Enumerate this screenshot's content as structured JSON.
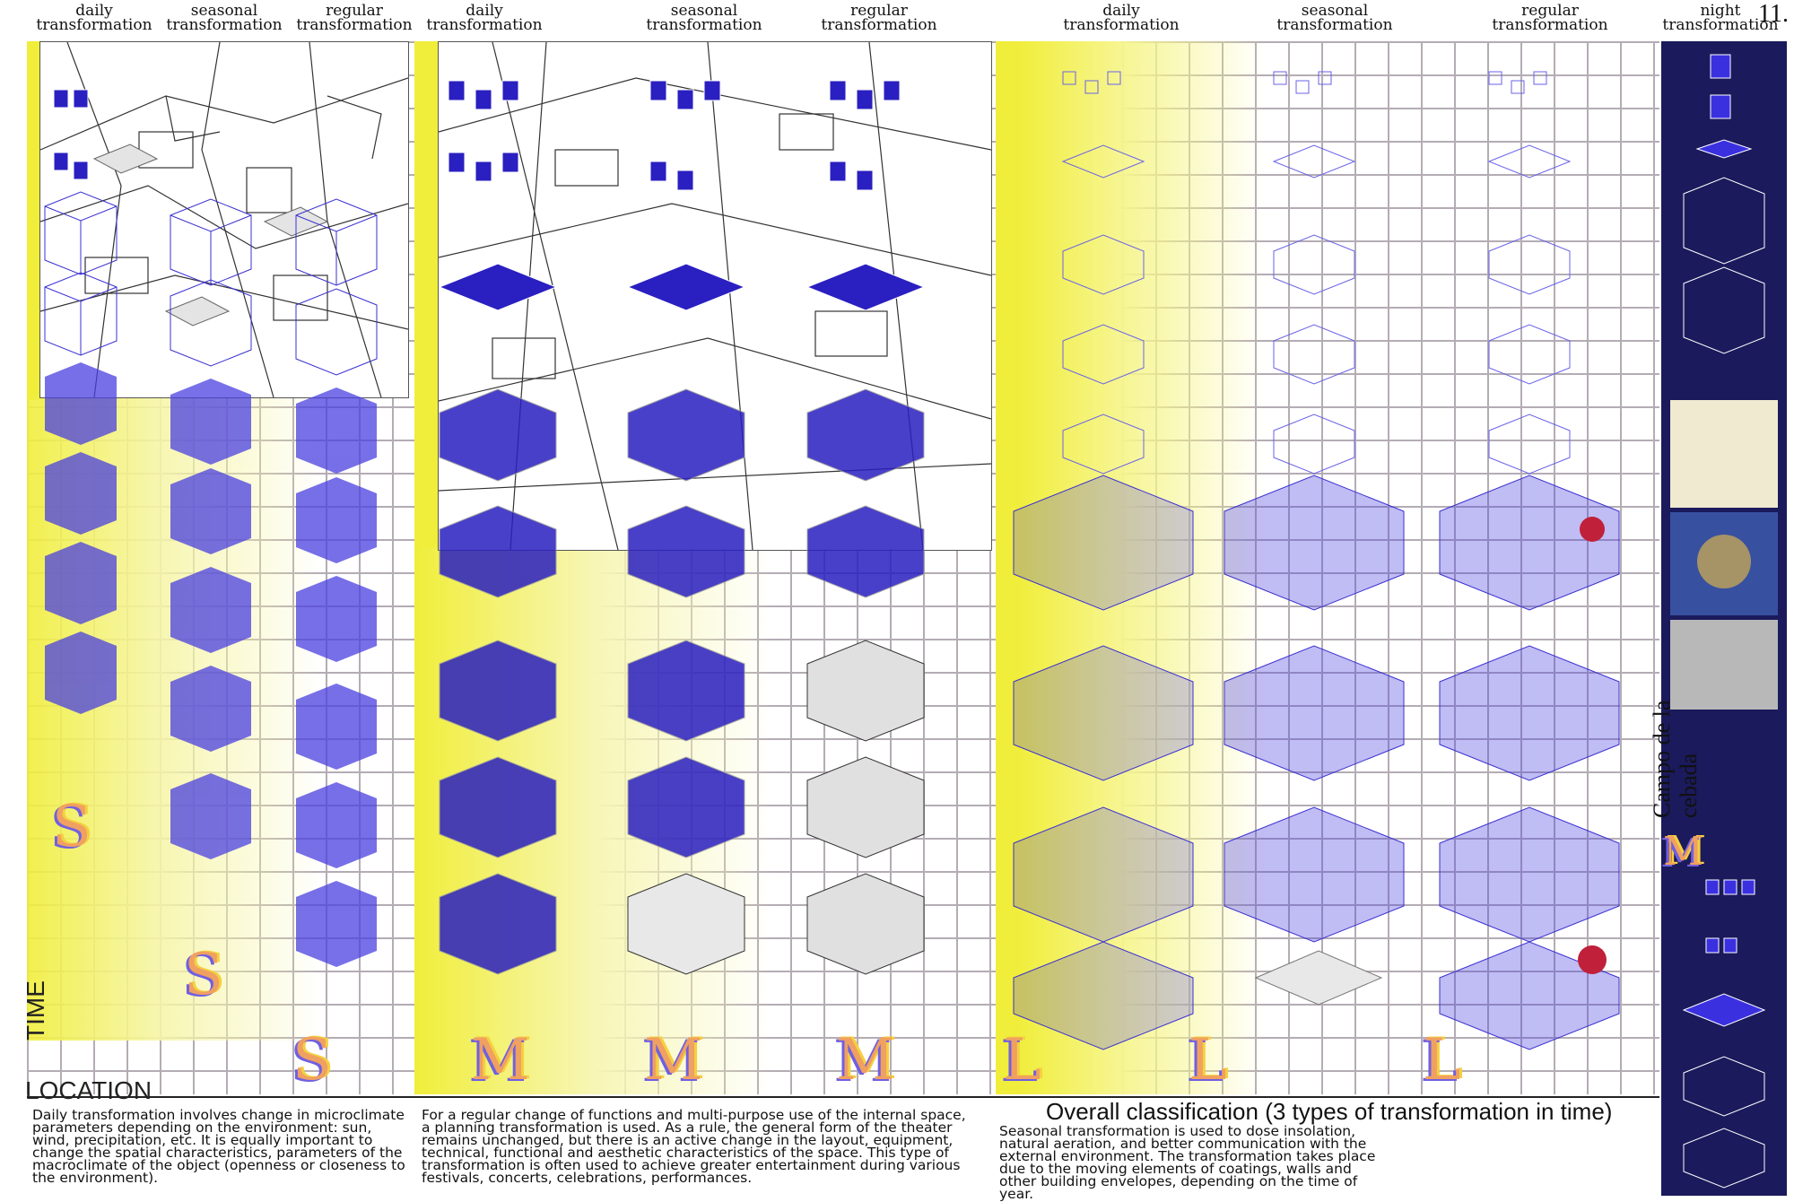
{
  "page_number": "11.",
  "column_headers": [
    {
      "l1": "daily",
      "l2": "transformation"
    },
    {
      "l1": "seasonal",
      "l2": "transformation"
    },
    {
      "l1": "regular",
      "l2": "transformation"
    },
    {
      "l1": "daily",
      "l2": "transformation"
    },
    {
      "l1": "seasonal",
      "l2": "transformation"
    },
    {
      "l1": "regular",
      "l2": "transformation"
    },
    {
      "l1": "daily",
      "l2": "transformation"
    },
    {
      "l1": "seasonal",
      "l2": "transformation"
    },
    {
      "l1": "regular",
      "l2": "transformation"
    },
    {
      "l1": "night",
      "l2": "transformation"
    }
  ],
  "size_letters": [
    "S",
    "S",
    "S",
    "M",
    "M",
    "M",
    "L",
    "L",
    "L",
    "M"
  ],
  "axis": {
    "time": "TIME",
    "location": "LOCATION"
  },
  "side_label": "Campo de la cebada",
  "overall_heading": "Overall classification (3 types of transformation in time)",
  "descriptions": {
    "daily": "Daily transformation involves change in microclimate parameters depending on the environment: sun, wind, precipitation, etc. It is equally important to change the spatial characteristics, parameters of the macroclimate of the object (openness or closeness to the environment).",
    "regular": "For a regular change of functions and multi-purpose use of the internal space, a planning transformation is used. As a rule, the general form of the theater remains unchanged, but there is an active change in the layout, equipment, technical, functional and aesthetic characteristics of the space. This type of transformation is often used to achieve greater entertainment during various festivals, concerts, celebrations, performances.",
    "seasonal": "Seasonal transformation is used to dose insolation, natural aeration, and better communication with the external environment. The transformation takes place due to the moving elements of coatings, walls and other building envelopes, depending on the time of year."
  },
  "colors": {
    "yellow": "#f0ee3a",
    "blue": "#2a1fc0",
    "navy": "#1b1a5c",
    "grid": "#b4acb4",
    "letter": "#f0a060"
  }
}
